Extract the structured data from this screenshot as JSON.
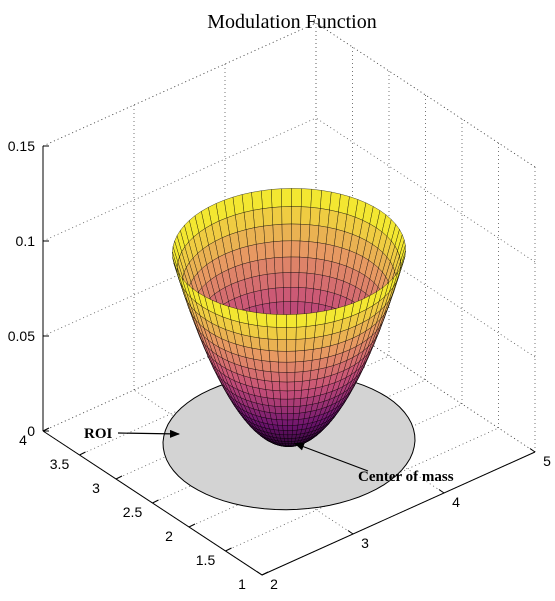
{
  "chart_data": {
    "type": "surface",
    "title": "Modulation Function",
    "xlabel": "",
    "ylabel": "",
    "zlabel": "",
    "x_ticks": [
      "2",
      "3",
      "4",
      "5"
    ],
    "y_ticks": [
      "1",
      "1.5",
      "2",
      "2.5",
      "3",
      "3.5",
      "4"
    ],
    "z_ticks": [
      "0",
      "0.05",
      "0.1",
      "0.15"
    ],
    "xlim": [
      2,
      5
    ],
    "ylim": [
      1,
      4
    ],
    "zlim": [
      0,
      0.15
    ],
    "grid": true,
    "surface": {
      "shape": "paraboloid",
      "center": [
        3.5,
        2.5
      ],
      "radius": 1.0,
      "z_at_center": 0.0,
      "z_at_rim": 0.1,
      "colormap": "spring-magma (dark purple at bottom to yellow at rim)"
    },
    "roi": {
      "shape": "disk",
      "z": 0,
      "fill": "#d3d3d3"
    },
    "annotations": [
      {
        "text": "ROI",
        "target": "roi-edge"
      },
      {
        "text": "Center of mass",
        "target": "surface-bottom"
      }
    ]
  }
}
